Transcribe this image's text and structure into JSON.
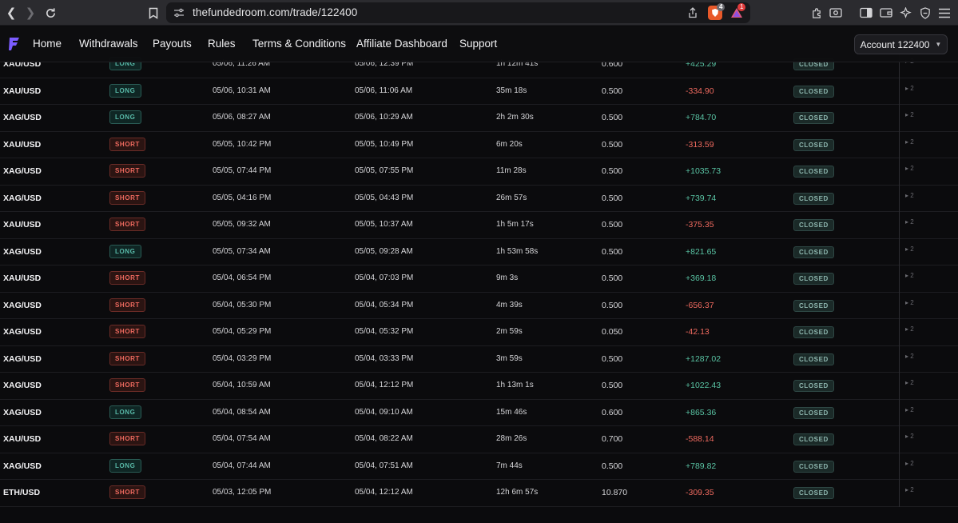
{
  "browser": {
    "url": "thefundedroom.com/trade/122400",
    "shield_count": "4",
    "alert_count": "1"
  },
  "nav": {
    "items": [
      "Home",
      "Withdrawals",
      "Payouts",
      "Rules",
      "Terms & Conditions",
      "Affiliate Dashboard",
      "Support"
    ],
    "account_label": "Account 122400"
  },
  "colors": {
    "accent": "#7b5cff",
    "long": "#58b9a8",
    "short": "#ef6a5f",
    "profit": "#59c3a3",
    "loss": "#ef6a5f"
  },
  "trades": [
    {
      "symbol": "XAU/USD",
      "side": "LONG",
      "open": "05/06, 11:26 AM",
      "close": "05/06, 12:39 PM",
      "duration": "1h 12m 41s",
      "size": "0.600",
      "pnl": "+425.29",
      "status": "CLOSED",
      "extra": "2"
    },
    {
      "symbol": "XAU/USD",
      "side": "LONG",
      "open": "05/06, 10:31 AM",
      "close": "05/06, 11:06 AM",
      "duration": "35m 18s",
      "size": "0.500",
      "pnl": "-334.90",
      "status": "CLOSED",
      "extra": "2"
    },
    {
      "symbol": "XAG/USD",
      "side": "LONG",
      "open": "05/06, 08:27 AM",
      "close": "05/06, 10:29 AM",
      "duration": "2h 2m 30s",
      "size": "0.500",
      "pnl": "+784.70",
      "status": "CLOSED",
      "extra": "2"
    },
    {
      "symbol": "XAU/USD",
      "side": "SHORT",
      "open": "05/05, 10:42 PM",
      "close": "05/05, 10:49 PM",
      "duration": "6m 20s",
      "size": "0.500",
      "pnl": "-313.59",
      "status": "CLOSED",
      "extra": "2"
    },
    {
      "symbol": "XAG/USD",
      "side": "SHORT",
      "open": "05/05, 07:44 PM",
      "close": "05/05, 07:55 PM",
      "duration": "11m 28s",
      "size": "0.500",
      "pnl": "+1035.73",
      "status": "CLOSED",
      "extra": "2"
    },
    {
      "symbol": "XAG/USD",
      "side": "SHORT",
      "open": "05/05, 04:16 PM",
      "close": "05/05, 04:43 PM",
      "duration": "26m 57s",
      "size": "0.500",
      "pnl": "+739.74",
      "status": "CLOSED",
      "extra": "2"
    },
    {
      "symbol": "XAU/USD",
      "side": "SHORT",
      "open": "05/05, 09:32 AM",
      "close": "05/05, 10:37 AM",
      "duration": "1h 5m 17s",
      "size": "0.500",
      "pnl": "-375.35",
      "status": "CLOSED",
      "extra": "2"
    },
    {
      "symbol": "XAG/USD",
      "side": "LONG",
      "open": "05/05, 07:34 AM",
      "close": "05/05, 09:28 AM",
      "duration": "1h 53m 58s",
      "size": "0.500",
      "pnl": "+821.65",
      "status": "CLOSED",
      "extra": "2"
    },
    {
      "symbol": "XAU/USD",
      "side": "SHORT",
      "open": "05/04, 06:54 PM",
      "close": "05/04, 07:03 PM",
      "duration": "9m 3s",
      "size": "0.500",
      "pnl": "+369.18",
      "status": "CLOSED",
      "extra": "2"
    },
    {
      "symbol": "XAG/USD",
      "side": "SHORT",
      "open": "05/04, 05:30 PM",
      "close": "05/04, 05:34 PM",
      "duration": "4m 39s",
      "size": "0.500",
      "pnl": "-656.37",
      "status": "CLOSED",
      "extra": "2"
    },
    {
      "symbol": "XAG/USD",
      "side": "SHORT",
      "open": "05/04, 05:29 PM",
      "close": "05/04, 05:32 PM",
      "duration": "2m 59s",
      "size": "0.050",
      "pnl": "-42.13",
      "status": "CLOSED",
      "extra": "2"
    },
    {
      "symbol": "XAG/USD",
      "side": "SHORT",
      "open": "05/04, 03:29 PM",
      "close": "05/04, 03:33 PM",
      "duration": "3m 59s",
      "size": "0.500",
      "pnl": "+1287.02",
      "status": "CLOSED",
      "extra": "2"
    },
    {
      "symbol": "XAG/USD",
      "side": "SHORT",
      "open": "05/04, 10:59 AM",
      "close": "05/04, 12:12 PM",
      "duration": "1h 13m 1s",
      "size": "0.500",
      "pnl": "+1022.43",
      "status": "CLOSED",
      "extra": "2"
    },
    {
      "symbol": "XAG/USD",
      "side": "LONG",
      "open": "05/04, 08:54 AM",
      "close": "05/04, 09:10 AM",
      "duration": "15m 46s",
      "size": "0.600",
      "pnl": "+865.36",
      "status": "CLOSED",
      "extra": "2"
    },
    {
      "symbol": "XAU/USD",
      "side": "SHORT",
      "open": "05/04, 07:54 AM",
      "close": "05/04, 08:22 AM",
      "duration": "28m 26s",
      "size": "0.700",
      "pnl": "-588.14",
      "status": "CLOSED",
      "extra": "2"
    },
    {
      "symbol": "XAG/USD",
      "side": "LONG",
      "open": "05/04, 07:44 AM",
      "close": "05/04, 07:51 AM",
      "duration": "7m 44s",
      "size": "0.500",
      "pnl": "+789.82",
      "status": "CLOSED",
      "extra": "2"
    },
    {
      "symbol": "ETH/USD",
      "side": "SHORT",
      "open": "05/03, 12:05 PM",
      "close": "05/04, 12:12 AM",
      "duration": "12h 6m 57s",
      "size": "10.870",
      "pnl": "-309.35",
      "status": "CLOSED",
      "extra": "2"
    }
  ]
}
